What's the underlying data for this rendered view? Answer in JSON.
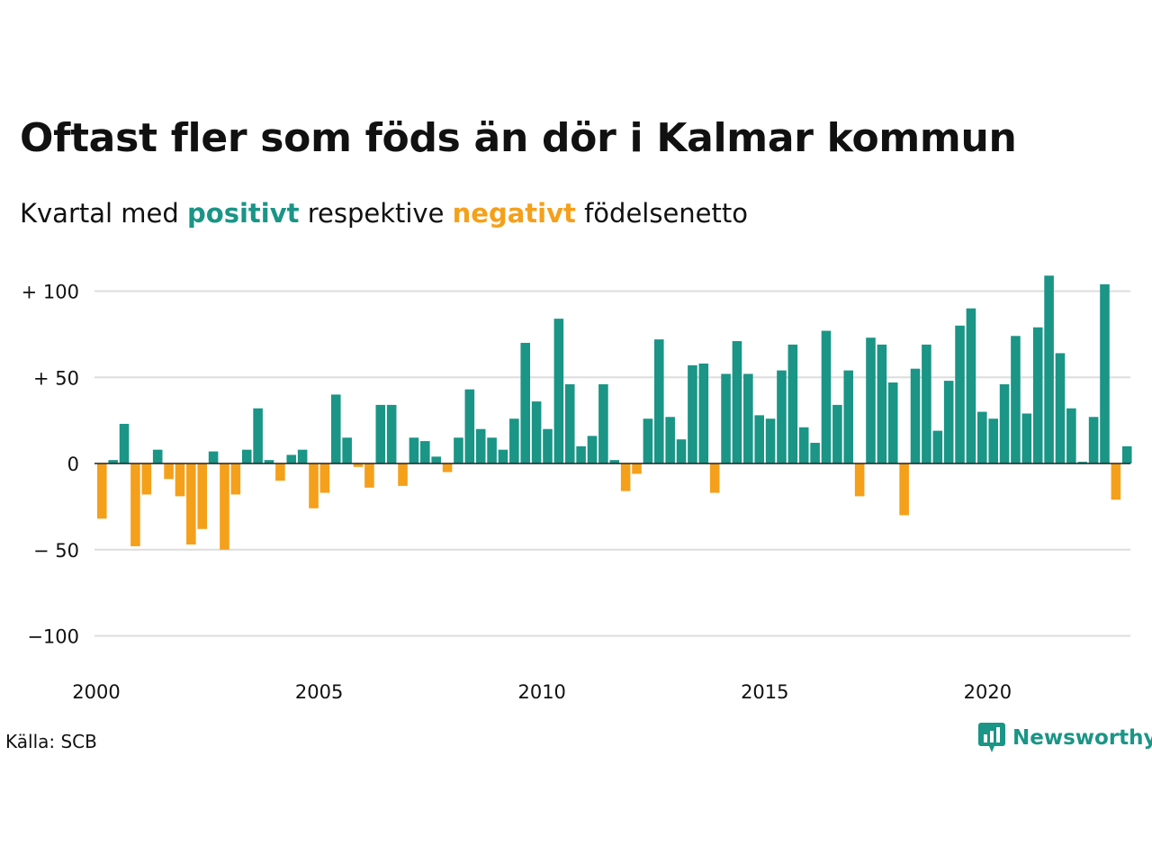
{
  "title": "Oftast fler som föds än dör i Kalmar kommun",
  "subtitle": {
    "before": "Kvartal med",
    "positive_word": "positivt",
    "middle": "respektive",
    "negative_word": "negativt",
    "after": "födelsenetto"
  },
  "colors": {
    "positive": "#1a9586",
    "negative": "#f5a01a",
    "gridline": "#dddddd",
    "text": "#111111"
  },
  "source": "Källa: SCB",
  "brand": {
    "name": "Newsworthy",
    "icon": "newsworthy-logo-icon"
  },
  "chart_data": {
    "type": "bar",
    "title": "Oftast fler som föds än dör i Kalmar kommun",
    "subtitle": "Kvartal med positivt respektive negativt födelsenetto",
    "x_start": 2000,
    "x_ticks": [
      2000,
      2005,
      2010,
      2015,
      2020
    ],
    "x_tick_labels": [
      "2000",
      "2005",
      "2010",
      "2015",
      "2020"
    ],
    "y_ticks": [
      100,
      50,
      0,
      -50,
      -100
    ],
    "y_tick_labels": [
      "+ 100",
      "+  50",
      "0",
      "− 50",
      "−100"
    ],
    "ylim": [
      -112,
      112
    ],
    "grid": true,
    "quarters_per_year": 4,
    "values": [
      -32,
      2,
      23,
      -48,
      -18,
      8,
      -9,
      -19,
      -47,
      -38,
      7,
      -50,
      -18,
      8,
      32,
      2,
      -10,
      5,
      8,
      -26,
      -17,
      40,
      15,
      -2,
      -14,
      34,
      34,
      -13,
      15,
      13,
      4,
      -5,
      15,
      43,
      20,
      15,
      8,
      26,
      70,
      36,
      20,
      84,
      46,
      10,
      16,
      46,
      2,
      -16,
      -6,
      26,
      72,
      27,
      14,
      57,
      58,
      -17,
      52,
      71,
      52,
      28,
      26,
      54,
      69,
      21,
      12,
      77,
      34,
      54,
      -19,
      73,
      69,
      47,
      -30,
      55,
      69,
      19,
      48,
      80,
      90,
      30,
      26,
      46,
      74,
      29,
      79,
      109,
      64,
      32,
      1,
      27,
      104,
      -21,
      10
    ]
  }
}
